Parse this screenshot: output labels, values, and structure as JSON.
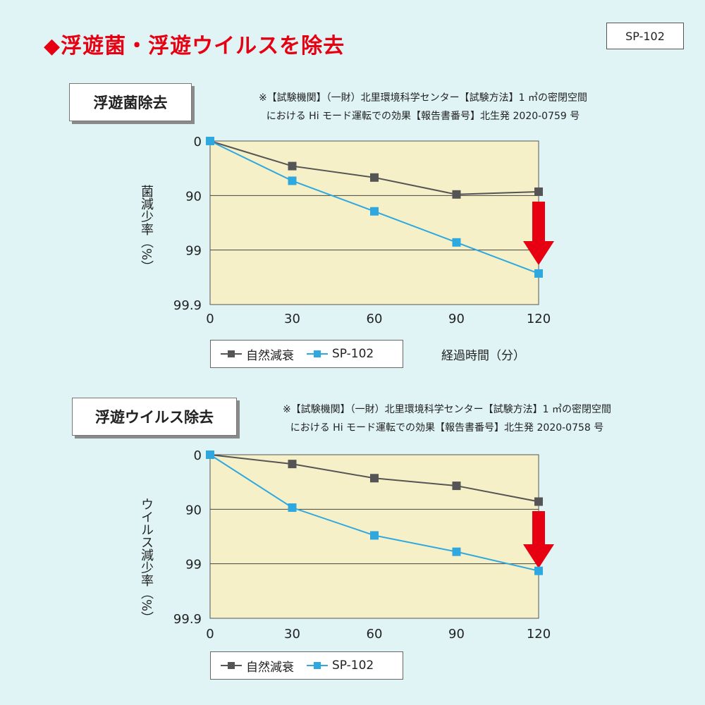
{
  "headline": "◆浮遊菌・浮遊ウイルスを除去",
  "model": "SP-102",
  "colors": {
    "natural": "#555555",
    "product": "#2fa8e0",
    "plot_bg": "#f5f0c8",
    "arrow": "#e60012",
    "headline": "#e60012"
  },
  "charts": [
    {
      "label": "浮遊菌除去",
      "note_line1": "※【試験機関】（一財）北里環境科学センター【試験方法】1 ㎥の密閉空間",
      "note_line2": "における Hi モード運転での効果【報告書番号】北生発 2020-0759 号",
      "ylabel": "菌減少率（%）",
      "xlabel": "経過時間（分）",
      "legend_natural": "自然減衰",
      "legend_product": "SP-102"
    },
    {
      "label": "浮遊ウイルス除去",
      "note_line1": "※【試験機関】（一財）北里環境科学センター【試験方法】1 ㎥の密閉空間",
      "note_line2": "における Hi モード運転での効果【報告書番号】北生発 2020-0758 号",
      "ylabel": "ウイルス減少率（%）",
      "xlabel": "",
      "legend_natural": "自然減衰",
      "legend_product": "SP-102"
    }
  ],
  "chart_data": [
    {
      "type": "line",
      "title": "浮遊菌除去",
      "x": [
        0,
        30,
        60,
        90,
        120
      ],
      "x_tick_labels": [
        "0",
        "30",
        "60",
        "90",
        "120"
      ],
      "y_tick_labels": [
        "0",
        "90",
        "99",
        "99.9"
      ],
      "y_tick_levels": [
        0,
        1,
        2,
        3
      ],
      "y_scale": "log reduction level (0 = 0%, 1 = 90%, 2 = 99%, 3 = 99.9%)",
      "series": [
        {
          "name": "自然減衰",
          "values": [
            0,
            0.46,
            0.67,
            0.98,
            0.93
          ]
        },
        {
          "name": "SP-102",
          "values": [
            0,
            0.73,
            1.29,
            1.86,
            2.43
          ]
        }
      ],
      "xlabel": "経過時間（分）",
      "ylabel": "菌減少率（%）",
      "ylim": [
        0,
        3
      ]
    },
    {
      "type": "line",
      "title": "浮遊ウイルス除去",
      "x": [
        0,
        30,
        60,
        90,
        120
      ],
      "x_tick_labels": [
        "0",
        "30",
        "60",
        "90",
        "120"
      ],
      "y_tick_labels": [
        "0",
        "90",
        "99",
        "99.9"
      ],
      "y_tick_levels": [
        0,
        1,
        2,
        3
      ],
      "y_scale": "log reduction level (0 = 0%, 1 = 90%, 2 = 99%, 3 = 99.9%)",
      "series": [
        {
          "name": "自然減衰",
          "values": [
            0,
            0.17,
            0.43,
            0.57,
            0.86
          ]
        },
        {
          "name": "SP-102",
          "values": [
            0,
            0.97,
            1.48,
            1.78,
            2.13
          ]
        }
      ],
      "xlabel": "",
      "ylabel": "ウイルス減少率（%）",
      "ylim": [
        0,
        3
      ]
    }
  ]
}
